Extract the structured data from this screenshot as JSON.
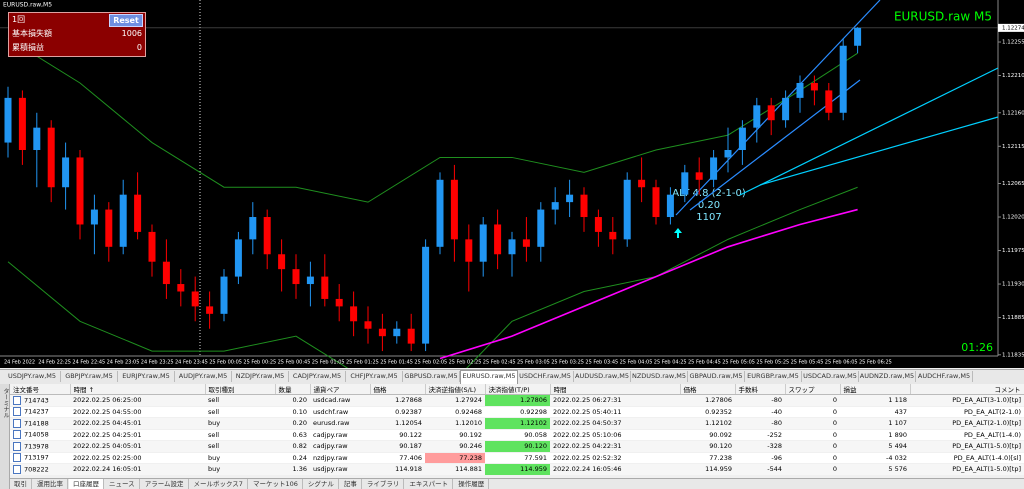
{
  "window_title": "EURUSD.raw,M5",
  "chart_data": {
    "type": "candlestick",
    "title": "EURUSD.raw M5",
    "colors": {
      "up": "#2196f3",
      "down": "#ff0000",
      "bands": "#1f8f1f",
      "ma": "#ff00ff"
    },
    "ylim": [
      1.11828,
      1.12298
    ],
    "yticks": [
      1.12255,
      {
        "value": 1.1221,
        "label": "1.12210"
      },
      {
        "value": 1.1216,
        "label": "1.12160"
      },
      1.12115,
      1.12065,
      {
        "value": 1.1202,
        "label": "1.12020"
      },
      1.11975,
      {
        "value": 1.1193,
        "label": "1.11930"
      },
      1.11885,
      1.11835
    ],
    "current_price": 1.12274,
    "ohlc": [
      [
        1.1212,
        1.12195,
        1.121,
        1.1218
      ],
      [
        1.1218,
        1.1219,
        1.1209,
        1.1211
      ],
      [
        1.1211,
        1.1216,
        1.1206,
        1.1214
      ],
      [
        1.1214,
        1.1215,
        1.1204,
        1.1206
      ],
      [
        1.1206,
        1.1212,
        1.1203,
        1.121
      ],
      [
        1.121,
        1.1211,
        1.1199,
        1.1201
      ],
      [
        1.1201,
        1.1205,
        1.1197,
        1.1203
      ],
      [
        1.1203,
        1.1204,
        1.1196,
        1.1198
      ],
      [
        1.1198,
        1.1207,
        1.1197,
        1.1205
      ],
      [
        1.1205,
        1.1208,
        1.1199,
        1.12
      ],
      [
        1.12,
        1.1201,
        1.1194,
        1.1196
      ],
      [
        1.1196,
        1.1199,
        1.1191,
        1.1193
      ],
      [
        1.1193,
        1.1195,
        1.119,
        1.1192
      ],
      [
        1.1192,
        1.1194,
        1.1188,
        1.119
      ],
      [
        1.119,
        1.1192,
        1.1187,
        1.1189
      ],
      [
        1.1189,
        1.1195,
        1.1188,
        1.1194
      ],
      [
        1.1194,
        1.12,
        1.1193,
        1.1199
      ],
      [
        1.1199,
        1.1204,
        1.1197,
        1.1202
      ],
      [
        1.1202,
        1.1203,
        1.1195,
        1.1197
      ],
      [
        1.1197,
        1.1199,
        1.1192,
        1.1195
      ],
      [
        1.1195,
        1.1197,
        1.1191,
        1.1193
      ],
      [
        1.1193,
        1.1196,
        1.119,
        1.1194
      ],
      [
        1.1194,
        1.1197,
        1.119,
        1.1191
      ],
      [
        1.1191,
        1.1193,
        1.1188,
        1.119
      ],
      [
        1.119,
        1.1192,
        1.1186,
        1.1188
      ],
      [
        1.1188,
        1.119,
        1.1185,
        1.1187
      ],
      [
        1.1187,
        1.1189,
        1.1184,
        1.1186
      ],
      [
        1.1186,
        1.1188,
        1.1185,
        1.1187
      ],
      [
        1.1187,
        1.1189,
        1.1184,
        1.1185
      ],
      [
        1.1185,
        1.1199,
        1.1184,
        1.1198
      ],
      [
        1.1198,
        1.1208,
        1.1197,
        1.1207
      ],
      [
        1.1207,
        1.1209,
        1.1196,
        1.1199
      ],
      [
        1.1199,
        1.1201,
        1.1192,
        1.1196
      ],
      [
        1.1196,
        1.1202,
        1.1194,
        1.1201
      ],
      [
        1.1201,
        1.1203,
        1.1195,
        1.1197
      ],
      [
        1.1197,
        1.12,
        1.1194,
        1.1199
      ],
      [
        1.1199,
        1.1202,
        1.1196,
        1.1198
      ],
      [
        1.1198,
        1.1204,
        1.1196,
        1.1203
      ],
      [
        1.1203,
        1.1206,
        1.1201,
        1.1204
      ],
      [
        1.1204,
        1.1207,
        1.1202,
        1.1205
      ],
      [
        1.1205,
        1.1206,
        1.12,
        1.1202
      ],
      [
        1.1202,
        1.1203,
        1.1198,
        1.12
      ],
      [
        1.12,
        1.1202,
        1.1197,
        1.1199
      ],
      [
        1.1199,
        1.1208,
        1.1198,
        1.1207
      ],
      [
        1.1207,
        1.121,
        1.1204,
        1.1206
      ],
      [
        1.1206,
        1.1207,
        1.1201,
        1.1202
      ],
      [
        1.1202,
        1.1206,
        1.1201,
        1.1205
      ],
      [
        1.1205,
        1.1209,
        1.1204,
        1.1208
      ],
      [
        1.1208,
        1.121,
        1.1205,
        1.1207
      ],
      [
        1.1207,
        1.1211,
        1.1206,
        1.121
      ],
      [
        1.121,
        1.1214,
        1.1208,
        1.1211
      ],
      [
        1.1211,
        1.1215,
        1.1209,
        1.1214
      ],
      [
        1.1214,
        1.1218,
        1.1212,
        1.1217
      ],
      [
        1.1217,
        1.1218,
        1.1213,
        1.1215
      ],
      [
        1.1215,
        1.1219,
        1.1214,
        1.1218
      ],
      [
        1.1218,
        1.1221,
        1.1216,
        1.122
      ],
      [
        1.122,
        1.1221,
        1.1217,
        1.1219
      ],
      [
        1.1219,
        1.122,
        1.1215,
        1.1216
      ],
      [
        1.1216,
        1.1226,
        1.1215,
        1.1225
      ],
      [
        1.1225,
        1.12275,
        1.1224,
        1.12274
      ]
    ],
    "bands": {
      "index": [
        0,
        5,
        10,
        15,
        20,
        25,
        30,
        35,
        40,
        45,
        50,
        55,
        59
      ],
      "upper": [
        1.1226,
        1.122,
        1.1212,
        1.1206,
        1.1206,
        1.1204,
        1.121,
        1.121,
        1.1208,
        1.1211,
        1.1213,
        1.1219,
        1.1224
      ],
      "lower": [
        1.1196,
        1.1188,
        1.1184,
        1.1184,
        1.1186,
        1.118,
        1.1178,
        1.1188,
        1.1192,
        1.1194,
        1.1199,
        1.1203,
        1.1206
      ],
      "ma": [
        null,
        null,
        null,
        null,
        null,
        null,
        1.1183,
        1.1186,
        1.119,
        1.1194,
        1.1198,
        1.1201,
        1.1203
      ]
    },
    "time_labels": [
      "24 Feb 2022",
      "24 Feb 22:25",
      "24 Feb 22:45",
      "24 Feb 23:05",
      "24 Feb 23:25",
      "24 Feb 23:45",
      "25 Feb 00:05",
      "25 Feb 00:25",
      "25 Feb 00:45",
      "25 Feb 01:05",
      "25 Feb 01:25",
      "25 Feb 01:45",
      "25 Feb 02:05",
      "25 Feb 02:25",
      "25 Feb 02:45",
      "25 Feb 03:05",
      "25 Feb 03:25",
      "25 Feb 03:45",
      "25 Feb 04:05",
      "25 Feb 04:25",
      "25 Feb 04:45",
      "25 Feb 05:05",
      "25 Feb 05:25",
      "25 Feb 05:45",
      "25 Feb 06:05",
      "25 Feb 06:25"
    ],
    "annotation": [
      "ALT 4.8 (2-1-0)",
      "0.20",
      "1107"
    ],
    "timer": "01:26"
  },
  "panel": {
    "count": "1回",
    "button": "Reset",
    "rows": [
      [
        "基本損失額",
        "1006"
      ],
      [
        "累積損益",
        "0"
      ]
    ]
  },
  "symbol_tabs": [
    "USDJPY.raw,M5",
    "GBPJPY.raw,M5",
    "EURJPY.raw,M5",
    "AUDJPY.raw,M5",
    "NZDJPY.raw,M5",
    "CADJPY.raw,M5",
    "CHFJPY.raw,M5",
    "GBPUSD.raw,M5",
    "EURUSD.raw,M5",
    "USDCHF.raw,M5",
    "AUDUSD.raw,M5",
    "NZDUSD.raw,M5",
    "GBPAUD.raw,M5",
    "EURGBP.raw,M5",
    "USDCAD.raw,M5",
    "AUDNZD.raw,M5",
    "AUDCHF.raw,M5"
  ],
  "active_symbol_tab": 8,
  "table": {
    "headers": [
      "注文番号",
      "時間 ↑",
      "取引種別",
      "数量",
      "通貨ペア",
      "価格",
      "決済逆指値(S/L)",
      "決済指値(T/P)",
      "時間",
      "価格",
      "手数料",
      "スワップ",
      "損益",
      "コメント"
    ],
    "rows": [
      [
        "714743",
        "2022.02.25 06:25:00",
        "sell",
        "0.20",
        "usdcad.raw",
        "1.27868",
        "1.27924",
        "1.27806",
        "2022.02.25 06:27:31",
        "1.27806",
        "-80",
        "0",
        "1 118",
        "PD_EA_ALT(3-1.0)[tp]"
      ],
      [
        "714237",
        "2022.02.25 04:55:00",
        "sell",
        "0.10",
        "usdchf.raw",
        "0.92387",
        "0.92468",
        "0.92298",
        "2022.02.25 05:40:11",
        "0.92352",
        "-40",
        "0",
        "437",
        "PD_EA_ALT(2-1.0)"
      ],
      [
        "714188",
        "2022.02.25 04:45:01",
        "buy",
        "0.20",
        "eurusd.raw",
        "1.12054",
        "1.12010",
        "1.12102",
        "2022.02.25 04:50:37",
        "1.12102",
        "-80",
        "0",
        "1 107",
        "PD_EA_ALT(2-1.0)[tp]"
      ],
      [
        "714058",
        "2022.02.25 04:25:01",
        "sell",
        "0.63",
        "cadjpy.raw",
        "90.122",
        "90.192",
        "90.058",
        "2022.02.25 05:10:06",
        "90.092",
        "-252",
        "0",
        "1 890",
        "PD_EA_ALT(1-4.0)"
      ],
      [
        "713978",
        "2022.02.25 04:05:01",
        "sell",
        "0.82",
        "cadjpy.raw",
        "90.187",
        "90.246",
        "90.120",
        "2022.02.25 04:22:31",
        "90.120",
        "-328",
        "0",
        "5 494",
        "PD_EA_ALT(1-5.0)[tp]"
      ],
      [
        "713197",
        "2022.02.25 02:25:00",
        "buy",
        "0.24",
        "nzdjpy.raw",
        "77.406",
        "77.238",
        "77.591",
        "2022.02.25 02:52:32",
        "77.238",
        "-96",
        "0",
        "-4 032",
        "PD_EA_ALT(1-4.0)[sl]"
      ],
      [
        "708222",
        "2022.02.24 16:05:01",
        "buy",
        "1.36",
        "usdjpy.raw",
        "114.918",
        "114.881",
        "114.959",
        "2022.02.24 16:05:46",
        "114.959",
        "-544",
        "0",
        "5 576",
        "PD_EA_ALT(1-5.0)[tp]"
      ]
    ],
    "tp_hit": [
      0,
      2,
      4,
      6
    ],
    "sl_hit": [
      5
    ]
  },
  "bottom_tabs": [
    "取引",
    "運用比率",
    "口座履歴",
    "ニュース",
    "アラーム設定",
    "メールボックス7",
    "マーケット106",
    "シグナル",
    "記事",
    "ライブラリ",
    "エキスパート",
    "操作履歴"
  ],
  "active_bottom_tab": 2,
  "terminal_label": "ターミナル"
}
